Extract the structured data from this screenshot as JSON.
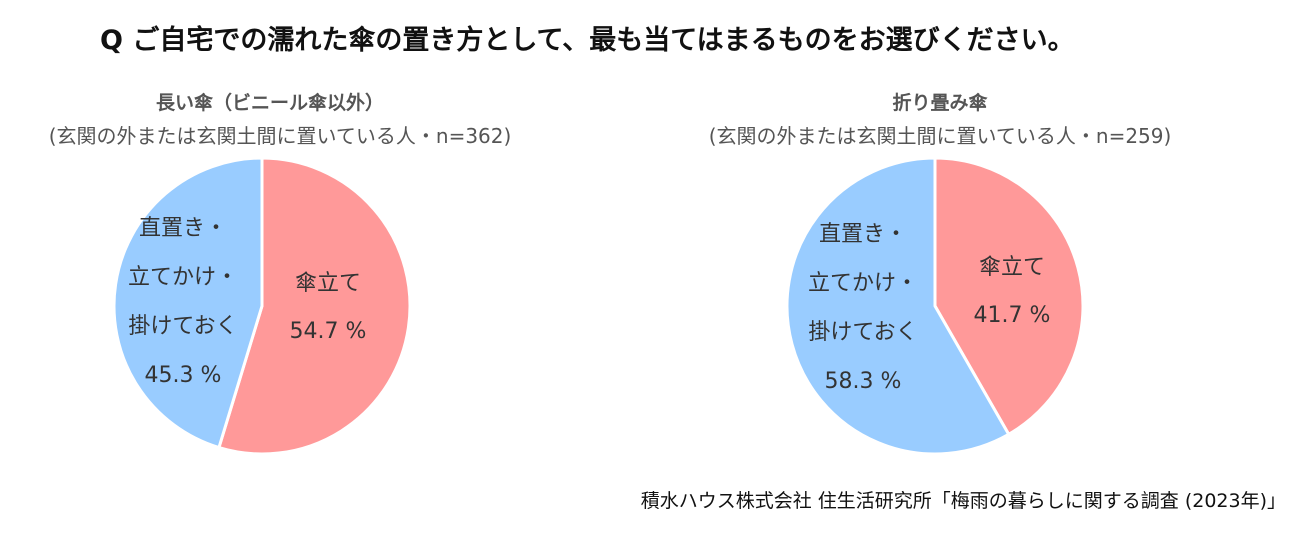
{
  "question": "Q ご自宅での濡れた傘の置き方として、最も当てはまるものをお選びください。",
  "source": "積水ハウス株式会社 住生活研究所「梅雨の暮らしに関する調査 (2023年)」",
  "colors": {
    "stand": "#ff9999",
    "direct": "#99ccff",
    "separator": "#ffffff"
  },
  "chart_data": [
    {
      "type": "pie",
      "title": "長い傘（ビニール傘以外）",
      "subtitle": "(玄関の外または玄関土間に置いている人・n=362)",
      "slices": [
        {
          "label_lines": [
            "傘立て"
          ],
          "value": 54.7,
          "value_label": "54.7 %",
          "color": "#ff9999"
        },
        {
          "label_lines": [
            "直置き・",
            "立てかけ・",
            "掛けておく"
          ],
          "value": 45.3,
          "value_label": "45.3 %",
          "color": "#99ccff"
        }
      ]
    },
    {
      "type": "pie",
      "title": "折り畳み傘",
      "subtitle": "(玄関の外または玄関土間に置いている人・n=259)",
      "slices": [
        {
          "label_lines": [
            "傘立て"
          ],
          "value": 41.7,
          "value_label": "41.7 %",
          "color": "#ff9999"
        },
        {
          "label_lines": [
            "直置き・",
            "立てかけ・",
            "掛けておく"
          ],
          "value": 58.3,
          "value_label": "58.3 %",
          "color": "#99ccff"
        }
      ]
    }
  ]
}
